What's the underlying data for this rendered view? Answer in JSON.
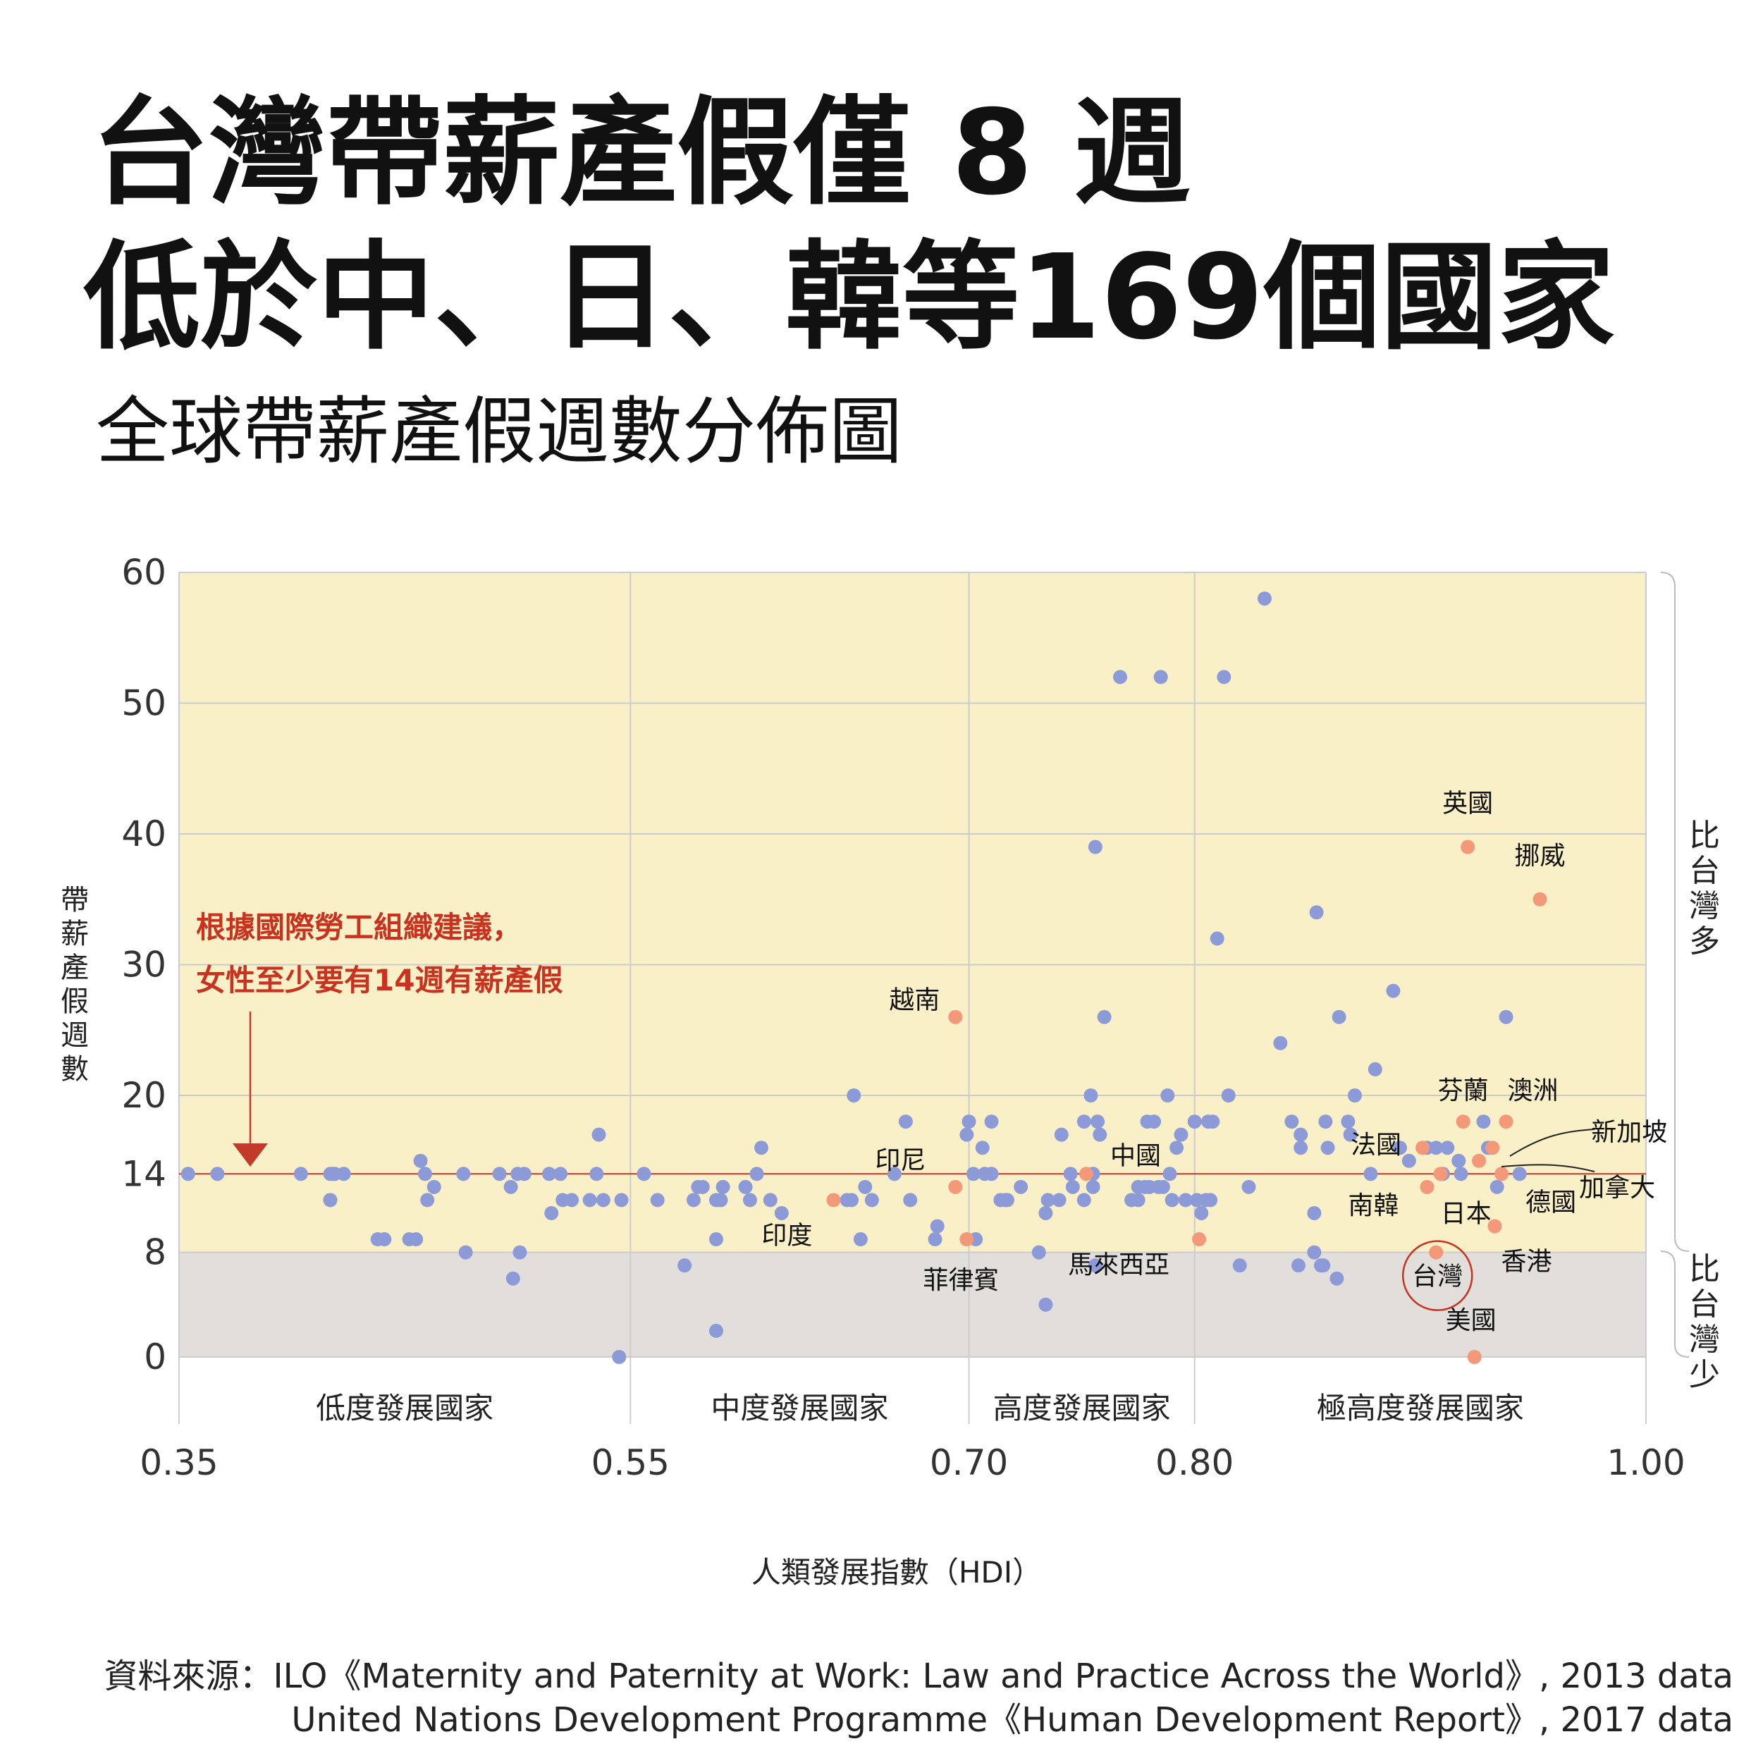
{
  "header": {
    "title_line1": "台灣帶薪產假僅 8 週",
    "title_line2": "低於中、日、韓等169個國家",
    "subtitle": "全球帶薪產假週數分佈圖"
  },
  "source": {
    "line1": "資料來源：ILO《Maternity and Paternity at Work: Law and Practice Across the World》, 2013 data",
    "line2": "United Nations Development Programme《Human Development Report》, 2017 data"
  },
  "colors": {
    "upper_zone": "#faf0c8",
    "lower_zone": "#e2dedb",
    "grid": "#cccccc",
    "normal_point": "#8c9bd8",
    "highlight_point": "#f4987a",
    "reference_line": "#c23b2a",
    "annotation_text": "#c8321e"
  },
  "chart_data": {
    "type": "scatter",
    "xlabel": "人類發展指數（HDI）",
    "ylabel": "帶薪產假週數",
    "xlim": [
      0.35,
      1.0
    ],
    "ylim": [
      0,
      60
    ],
    "x_ticks": [
      "0.35",
      "0.55",
      "0.70",
      "0.80",
      "1.00"
    ],
    "x_tick_values": [
      0.35,
      0.55,
      0.7,
      0.8,
      1.0
    ],
    "y_ticks": [
      "0",
      "8",
      "14",
      "20",
      "30",
      "40",
      "50",
      "60"
    ],
    "y_tick_values": [
      0,
      8,
      14,
      20,
      30,
      40,
      50,
      60
    ],
    "grid": true,
    "reference_line": {
      "y": 14,
      "annotation": [
        "根據國際勞工組織建議，",
        "女性至少要有14週有薪產假"
      ]
    },
    "bands": [
      {
        "label": "低度發展國家",
        "x_range": [
          0.35,
          0.55
        ]
      },
      {
        "label": "中度發展國家",
        "x_range": [
          0.55,
          0.7
        ]
      },
      {
        "label": "高度發展國家",
        "x_range": [
          0.7,
          0.8
        ]
      },
      {
        "label": "極高度發展國家",
        "x_range": [
          0.8,
          1.0
        ]
      }
    ],
    "side_labels": {
      "upper": "比台灣多",
      "lower": "比台灣少"
    },
    "labeled_points": [
      {
        "label": "英國",
        "x": 0.921,
        "y": 39
      },
      {
        "label": "挪威",
        "x": 0.953,
        "y": 35
      },
      {
        "label": "越南",
        "x": 0.694,
        "y": 26
      },
      {
        "label": "芬蘭",
        "x": 0.919,
        "y": 18
      },
      {
        "label": "澳洲",
        "x": 0.938,
        "y": 18
      },
      {
        "label": "法國",
        "x": 0.901,
        "y": 16
      },
      {
        "label": "新加坡",
        "x": 0.932,
        "y": 16
      },
      {
        "label": "加拿大",
        "x": 0.926,
        "y": 15
      },
      {
        "label": "印尼",
        "x": 0.694,
        "y": 13
      },
      {
        "label": "中國",
        "x": 0.752,
        "y": 14
      },
      {
        "label": "南韓",
        "x": 0.903,
        "y": 13
      },
      {
        "label": "日本",
        "x": 0.909,
        "y": 14
      },
      {
        "label": "德國",
        "x": 0.936,
        "y": 14
      },
      {
        "label": "印度",
        "x": 0.64,
        "y": 12
      },
      {
        "label": "香港",
        "x": 0.933,
        "y": 10
      },
      {
        "label": "菲律賓",
        "x": 0.699,
        "y": 9
      },
      {
        "label": "馬來西亞",
        "x": 0.802,
        "y": 9
      },
      {
        "label": "台灣",
        "x": 0.907,
        "y": 8
      },
      {
        "label": "美國",
        "x": 0.924,
        "y": 0
      }
    ],
    "points": [
      [
        0.354,
        14
      ],
      [
        0.367,
        14
      ],
      [
        0.404,
        14
      ],
      [
        0.417,
        14
      ],
      [
        0.419,
        14
      ],
      [
        0.418,
        14
      ],
      [
        0.417,
        12
      ],
      [
        0.417,
        12
      ],
      [
        0.423,
        14
      ],
      [
        0.438,
        9
      ],
      [
        0.441,
        9
      ],
      [
        0.452,
        9
      ],
      [
        0.455,
        9
      ],
      [
        0.457,
        15
      ],
      [
        0.459,
        14
      ],
      [
        0.46,
        12
      ],
      [
        0.463,
        13
      ],
      [
        0.476,
        14
      ],
      [
        0.477,
        8
      ],
      [
        0.492,
        14
      ],
      [
        0.497,
        13
      ],
      [
        0.5,
        14
      ],
      [
        0.503,
        14
      ],
      [
        0.498,
        6
      ],
      [
        0.501,
        8
      ],
      [
        0.515,
        11
      ],
      [
        0.514,
        14
      ],
      [
        0.519,
        14
      ],
      [
        0.52,
        12
      ],
      [
        0.524,
        12
      ],
      [
        0.532,
        12
      ],
      [
        0.535,
        14
      ],
      [
        0.536,
        17
      ],
      [
        0.538,
        12
      ],
      [
        0.545,
        0
      ],
      [
        0.546,
        12
      ],
      [
        0.556,
        14
      ],
      [
        0.562,
        12
      ],
      [
        0.574,
        7
      ],
      [
        0.578,
        12
      ],
      [
        0.58,
        13
      ],
      [
        0.582,
        13
      ],
      [
        0.588,
        2
      ],
      [
        0.588,
        9
      ],
      [
        0.588,
        12
      ],
      [
        0.59,
        12
      ],
      [
        0.591,
        13
      ],
      [
        0.59,
        12
      ],
      [
        0.601,
        13
      ],
      [
        0.603,
        12
      ],
      [
        0.606,
        14
      ],
      [
        0.608,
        16
      ],
      [
        0.612,
        12
      ],
      [
        0.617,
        11
      ],
      [
        0.649,
        20
      ],
      [
        0.646,
        12
      ],
      [
        0.648,
        12
      ],
      [
        0.652,
        9
      ],
      [
        0.654,
        13
      ],
      [
        0.657,
        12
      ],
      [
        0.667,
        14
      ],
      [
        0.672,
        18
      ],
      [
        0.674,
        12
      ],
      [
        0.685,
        9
      ],
      [
        0.686,
        10
      ],
      [
        0.699,
        17
      ],
      [
        0.7,
        18
      ],
      [
        0.702,
        14
      ],
      [
        0.703,
        9
      ],
      [
        0.706,
        16
      ],
      [
        0.707,
        14
      ],
      [
        0.71,
        14
      ],
      [
        0.71,
        18
      ],
      [
        0.714,
        12
      ],
      [
        0.716,
        12
      ],
      [
        0.717,
        12
      ],
      [
        0.723,
        13
      ],
      [
        0.731,
        8
      ],
      [
        0.734,
        11
      ],
      [
        0.734,
        4
      ],
      [
        0.735,
        12
      ],
      [
        0.74,
        12
      ],
      [
        0.741,
        17
      ],
      [
        0.745,
        14
      ],
      [
        0.746,
        13
      ],
      [
        0.751,
        18
      ],
      [
        0.751,
        12
      ],
      [
        0.754,
        20
      ],
      [
        0.755,
        13
      ],
      [
        0.755,
        14
      ],
      [
        0.756,
        39
      ],
      [
        0.756,
        7
      ],
      [
        0.758,
        17
      ],
      [
        0.757,
        18
      ],
      [
        0.76,
        26
      ],
      [
        0.767,
        52
      ],
      [
        0.772,
        12
      ],
      [
        0.775,
        13
      ],
      [
        0.775,
        12
      ],
      [
        0.778,
        13
      ],
      [
        0.779,
        18
      ],
      [
        0.78,
        13
      ],
      [
        0.782,
        18
      ],
      [
        0.784,
        13
      ],
      [
        0.785,
        52
      ],
      [
        0.786,
        13
      ],
      [
        0.788,
        20
      ],
      [
        0.789,
        14
      ],
      [
        0.79,
        12
      ],
      [
        0.792,
        16
      ],
      [
        0.794,
        17
      ],
      [
        0.796,
        12
      ],
      [
        0.8,
        18
      ],
      [
        0.801,
        12
      ],
      [
        0.803,
        11
      ],
      [
        0.805,
        12
      ],
      [
        0.806,
        18
      ],
      [
        0.807,
        12
      ],
      [
        0.808,
        18
      ],
      [
        0.81,
        32
      ],
      [
        0.813,
        52
      ],
      [
        0.815,
        20
      ],
      [
        0.82,
        7
      ],
      [
        0.824,
        13
      ],
      [
        0.831,
        58
      ],
      [
        0.838,
        24
      ],
      [
        0.843,
        18
      ],
      [
        0.846,
        7
      ],
      [
        0.847,
        17
      ],
      [
        0.847,
        16
      ],
      [
        0.853,
        11
      ],
      [
        0.853,
        8
      ],
      [
        0.854,
        34
      ],
      [
        0.856,
        7
      ],
      [
        0.857,
        7
      ],
      [
        0.858,
        18
      ],
      [
        0.859,
        16
      ],
      [
        0.863,
        6
      ],
      [
        0.864,
        26
      ],
      [
        0.868,
        18
      ],
      [
        0.869,
        17
      ],
      [
        0.871,
        20
      ],
      [
        0.878,
        14
      ],
      [
        0.88,
        22
      ],
      [
        0.888,
        28
      ],
      [
        0.891,
        16
      ],
      [
        0.895,
        15
      ],
      [
        0.903,
        16
      ],
      [
        0.907,
        16
      ],
      [
        0.91,
        14
      ],
      [
        0.912,
        16
      ],
      [
        0.917,
        15
      ],
      [
        0.918,
        14
      ],
      [
        0.928,
        18
      ],
      [
        0.934,
        13
      ],
      [
        0.938,
        26
      ],
      [
        0.944,
        14
      ],
      [
        0.93,
        16
      ]
    ]
  }
}
